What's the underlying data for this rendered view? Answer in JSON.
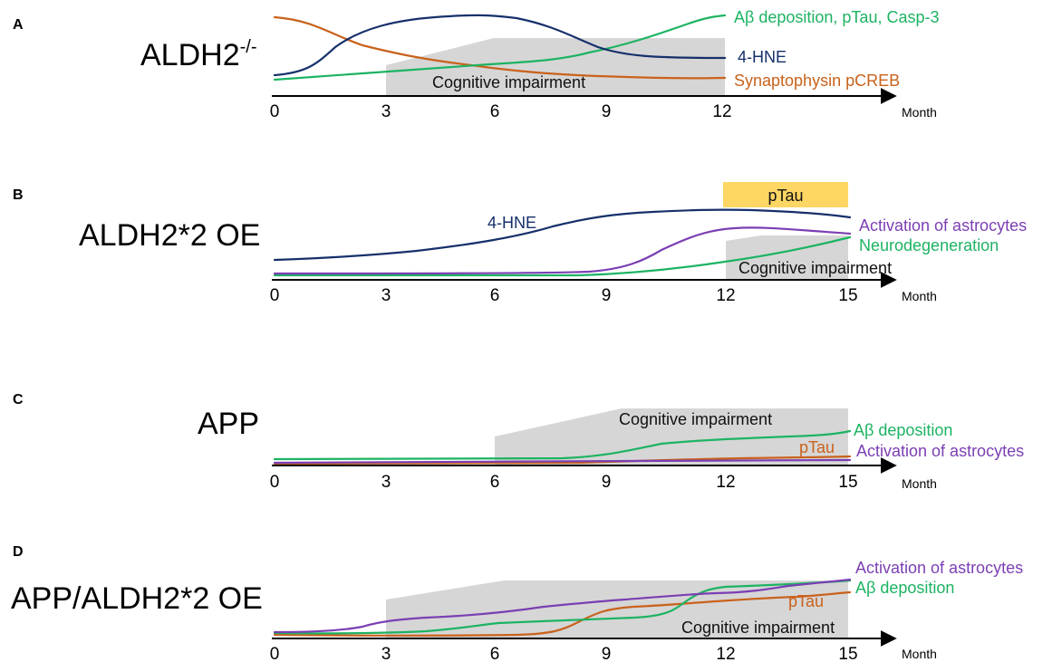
{
  "colors": {
    "green": "#1db363",
    "navy": "#16306b",
    "orange": "#c9621c",
    "purple": "#7b3fb3",
    "gray": "#d6d6d6",
    "yellow": "#fdd663"
  },
  "axis_unit": "Month",
  "panels": [
    {
      "letter": "A",
      "model": "ALDH2",
      "model_sup": "-/-",
      "ticks": [
        "0",
        "3",
        "6",
        "9",
        "12"
      ],
      "cognitive_label": "Cognitive impairment",
      "labels": [
        {
          "text": "Aβ deposition, pTau, Casp-3",
          "color": "green"
        },
        {
          "text": "4-HNE",
          "color": "navy"
        },
        {
          "text": "Synaptophysin pCREB",
          "color": "orange"
        }
      ]
    },
    {
      "letter": "B",
      "model": "ALDH2*2 OE",
      "ticks": [
        "0",
        "3",
        "6",
        "9",
        "12",
        "15"
      ],
      "cognitive_label": "Cognitive impairment",
      "box_label": "pTau",
      "labels": [
        {
          "text": "4-HNE",
          "color": "navy"
        },
        {
          "text": "Activation of astrocytes",
          "color": "purple"
        },
        {
          "text": "Neurodegeneration",
          "color": "green"
        }
      ]
    },
    {
      "letter": "C",
      "model": "APP",
      "ticks": [
        "0",
        "3",
        "6",
        "9",
        "12",
        "15"
      ],
      "cognitive_label": "Cognitive impairment",
      "labels": [
        {
          "text": "Aβ deposition",
          "color": "green"
        },
        {
          "text": "pTau",
          "color": "orange"
        },
        {
          "text": "Activation of astrocytes",
          "color": "purple"
        }
      ]
    },
    {
      "letter": "D",
      "model": "APP/ALDH2*2 OE",
      "ticks": [
        "0",
        "3",
        "6",
        "9",
        "12",
        "15"
      ],
      "cognitive_label": "Cognitive impairment",
      "labels": [
        {
          "text": "Activation of astrocytes",
          "color": "purple"
        },
        {
          "text": "Aβ deposition",
          "color": "green"
        },
        {
          "text": "pTau",
          "color": "orange"
        }
      ]
    }
  ]
}
